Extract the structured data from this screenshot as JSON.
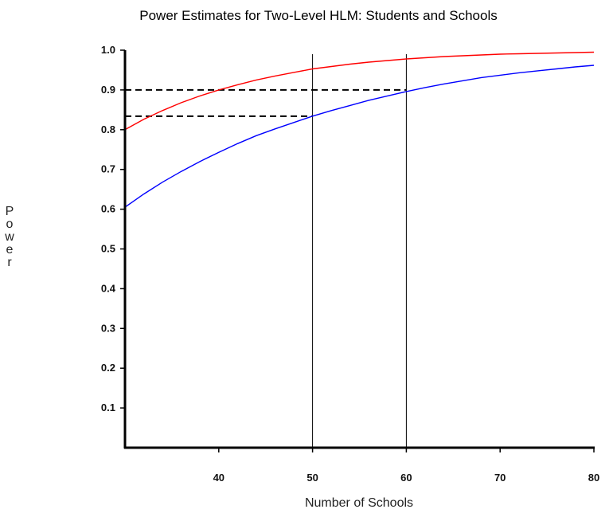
{
  "chart_data": {
    "type": "line",
    "title": "Power Estimates for Two-Level HLM: Students and Schools",
    "xlabel": "Number of Schools",
    "ylabel": "Power",
    "xlim": [
      30,
      80
    ],
    "ylim": [
      0,
      1.0
    ],
    "xticks": [
      "40",
      "50",
      "60",
      "70",
      "80"
    ],
    "yticks": [
      "0.1",
      "0.2",
      "0.3",
      "0.4",
      "0.5",
      "0.6",
      "0.7",
      "0.8",
      "0.9",
      "1.0"
    ],
    "grid": false,
    "series": [
      {
        "color": "#ff0000",
        "x": [
          30,
          32,
          34,
          36,
          38,
          40,
          42,
          44,
          46,
          48,
          50,
          52,
          54,
          56,
          58,
          60,
          62,
          64,
          66,
          68,
          70,
          72,
          74,
          76,
          78,
          80
        ],
        "y": [
          0.8,
          0.826,
          0.848,
          0.868,
          0.885,
          0.9,
          0.913,
          0.925,
          0.935,
          0.944,
          0.953,
          0.959,
          0.965,
          0.97,
          0.974,
          0.978,
          0.981,
          0.984,
          0.986,
          0.988,
          0.99,
          0.991,
          0.992,
          0.993,
          0.994,
          0.995
        ]
      },
      {
        "color": "#0000ff",
        "x": [
          30,
          32,
          34,
          36,
          38,
          40,
          42,
          44,
          46,
          48,
          50,
          52,
          54,
          56,
          58,
          60,
          62,
          64,
          66,
          68,
          70,
          72,
          74,
          76,
          78,
          80
        ],
        "y": [
          0.605,
          0.638,
          0.668,
          0.695,
          0.72,
          0.743,
          0.765,
          0.785,
          0.802,
          0.818,
          0.834,
          0.848,
          0.861,
          0.874,
          0.885,
          0.896,
          0.906,
          0.915,
          0.923,
          0.931,
          0.937,
          0.943,
          0.948,
          0.953,
          0.958,
          0.962
        ]
      }
    ],
    "reference_lines": {
      "horizontal_dashed": [
        0.9,
        0.834
      ],
      "vertical_solid": [
        50,
        60
      ]
    }
  }
}
